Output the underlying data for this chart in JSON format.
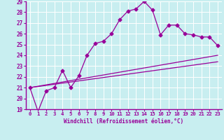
{
  "xlabel": "Windchill (Refroidissement éolien,°C)",
  "xlim": [
    0,
    23
  ],
  "ylim": [
    19,
    29
  ],
  "yticks": [
    19,
    20,
    21,
    22,
    23,
    24,
    25,
    26,
    27,
    28,
    29
  ],
  "xticks": [
    0,
    1,
    2,
    3,
    4,
    5,
    6,
    7,
    8,
    9,
    10,
    11,
    12,
    13,
    14,
    15,
    16,
    17,
    18,
    19,
    20,
    21,
    22,
    23
  ],
  "bg_color": "#c8eef0",
  "line_color": "#990099",
  "grid_color": "#ffffff",
  "series1_x": [
    0,
    1,
    2,
    3,
    4,
    5,
    6,
    7,
    8,
    9,
    10,
    11,
    12,
    13,
    14,
    15,
    16,
    17,
    18,
    19,
    20,
    21,
    22,
    23
  ],
  "series1_y": [
    21.0,
    18.8,
    20.7,
    21.0,
    22.6,
    21.0,
    22.1,
    24.0,
    25.1,
    25.3,
    26.0,
    27.3,
    28.1,
    28.3,
    29.0,
    28.2,
    25.9,
    26.8,
    26.8,
    26.0,
    25.9,
    25.7,
    25.7,
    24.9
  ],
  "series2_x": [
    0,
    23
  ],
  "series2_y": [
    21.0,
    24.0
  ],
  "series3_x": [
    0,
    23
  ],
  "series3_y": [
    21.0,
    23.4
  ],
  "marker": "D",
  "marker_size": 2.5,
  "linewidth": 0.9
}
